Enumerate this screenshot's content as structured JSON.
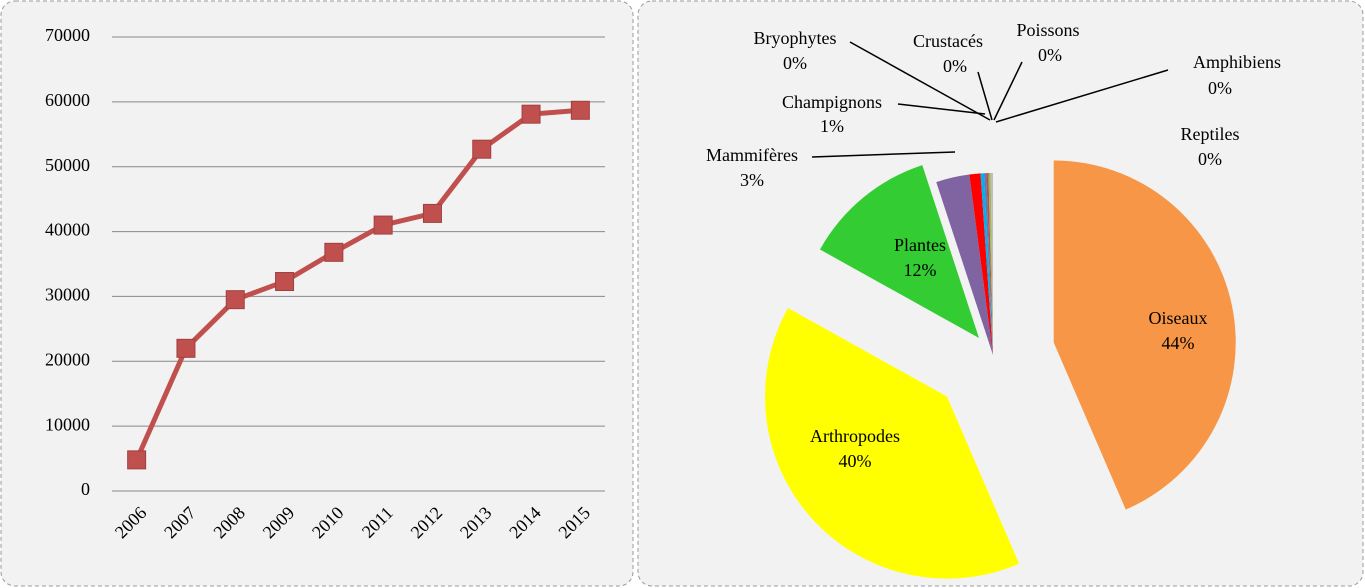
{
  "chart_data": [
    {
      "type": "line",
      "categories": [
        "2006",
        "2007",
        "2008",
        "2009",
        "2010",
        "2011",
        "2012",
        "2013",
        "2014",
        "2015"
      ],
      "series": [
        {
          "color": "#c0504d",
          "values": [
            4800,
            22000,
            29500,
            32300,
            36800,
            41000,
            42800,
            52700,
            58100,
            58700
          ]
        }
      ],
      "ylim": [
        0,
        70000
      ],
      "yticks": [
        0,
        10000,
        20000,
        30000,
        40000,
        50000,
        60000,
        70000
      ],
      "grid": true
    },
    {
      "type": "pie",
      "categories": [
        "Oiseaux",
        "Arthropodes",
        "Plantes",
        "Mammifères",
        "Champignons",
        "Bryophytes",
        "Crustacés",
        "Poissons",
        "Amphibiens",
        "Reptiles"
      ],
      "values": [
        44,
        40,
        12,
        3,
        1,
        0.3,
        0.2,
        0.2,
        0.2,
        0.2
      ],
      "value_labels": [
        "44%",
        "40%",
        "12%",
        "3%",
        "1%",
        "0%",
        "0%",
        "0%",
        "0%",
        "0%"
      ],
      "colors": [
        "#f79646",
        "#ffff00",
        "#33cc33",
        "#8064a2",
        "#ff0000",
        "#00b0f0",
        "#4f81bd",
        "#c0504d",
        "#9bbb59",
        "#bfbfbf"
      ]
    }
  ]
}
